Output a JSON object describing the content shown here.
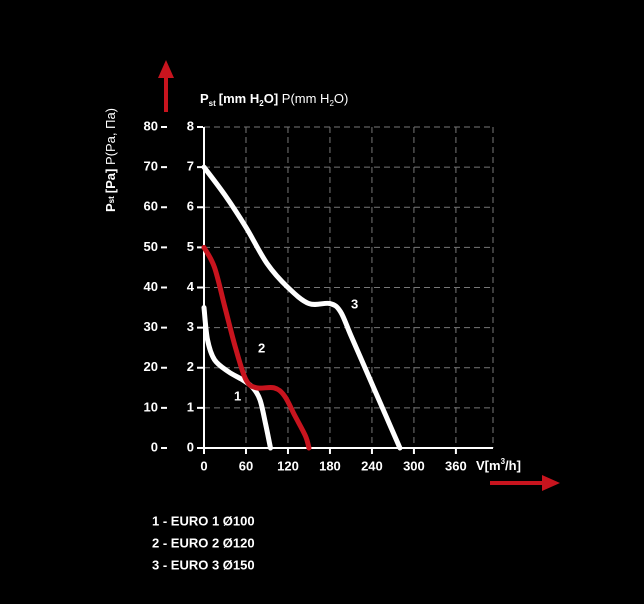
{
  "chart_data": {
    "type": "line",
    "y_title_parts": [
      "P",
      "st",
      "[Pa]",
      " P(Pa, Па)"
    ],
    "y2_title_parts": [
      "P",
      "st",
      "[mm H",
      "2",
      "O]",
      " P(mm H",
      "2",
      "O)"
    ],
    "x_title_parts": [
      "V[m",
      "3",
      "/h]"
    ],
    "xlim": [
      0,
      413
    ],
    "xticks": [
      0,
      60,
      120,
      180,
      240,
      300,
      360
    ],
    "ylim": [
      0,
      80
    ],
    "yticks": [
      0,
      10,
      20,
      30,
      40,
      50,
      60,
      70,
      80
    ],
    "y2lim": [
      0,
      8
    ],
    "y2ticks": [
      0,
      1,
      2,
      3,
      4,
      5,
      6,
      7,
      8
    ],
    "grid": true,
    "series": [
      {
        "name": "1 - EURO 1 Ø100",
        "label": "1",
        "color": "#ffffff",
        "x": [
          0,
          5,
          15,
          35,
          55,
          70,
          80,
          88,
          95
        ],
        "values": [
          35,
          27,
          22,
          19,
          17,
          15,
          12,
          6,
          0
        ]
      },
      {
        "name": "2 - EURO 2 Ø120",
        "label": "2",
        "color": "#c8141e",
        "x": [
          0,
          15,
          30,
          45,
          60,
          75,
          100,
          115,
          130,
          145,
          150
        ],
        "values": [
          50,
          45,
          35,
          25,
          17,
          15,
          15,
          13,
          8,
          3,
          0
        ]
      },
      {
        "name": "3 - EURO 3 Ø150",
        "label": "3",
        "color": "#ffffff",
        "x": [
          0,
          30,
          60,
          90,
          120,
          150,
          180,
          195,
          210,
          235,
          260,
          280
        ],
        "values": [
          70,
          63,
          55,
          46,
          40,
          36,
          36,
          34,
          28,
          18,
          8,
          0
        ]
      }
    ]
  }
}
